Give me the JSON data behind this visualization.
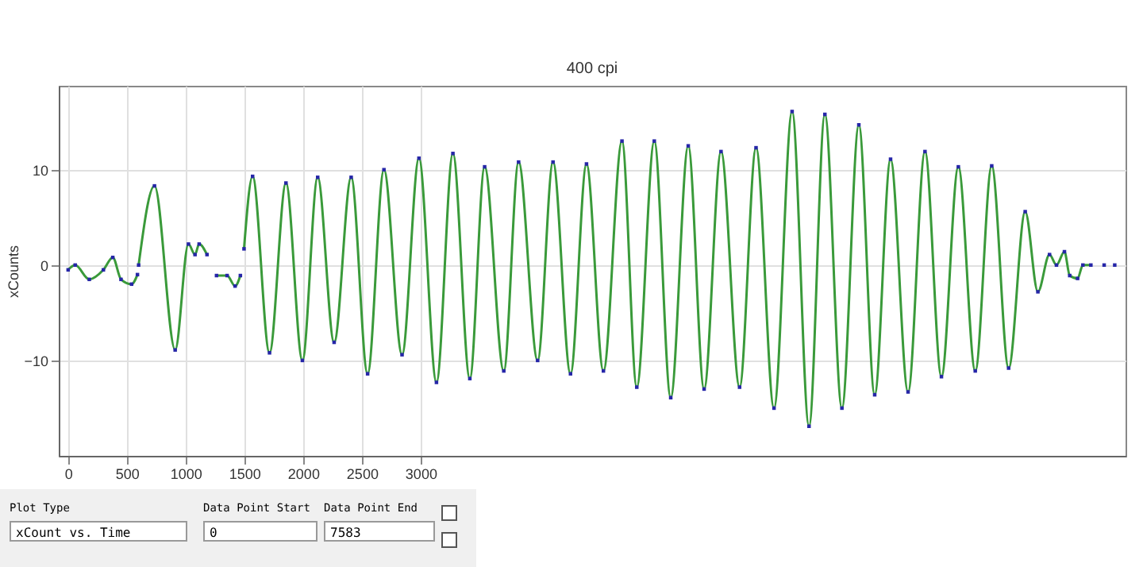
{
  "chart_data": {
    "type": "line",
    "subtitle": "400 cpi",
    "ylabel": "xCounts",
    "x": [
      0,
      60,
      180,
      300,
      380,
      450,
      540,
      590,
      592,
      600,
      735,
      911,
      1024,
      1080,
      1115,
      1182,
      1220,
      1263,
      1353,
      1421,
      1466,
      1480,
      1497,
      1570,
      1714,
      1854,
      1994,
      2124,
      2264,
      2409,
      2549,
      2688,
      2842,
      2986,
      3135,
      3275,
      3419,
      3545,
      3708,
      3834,
      3996,
      4127,
      4276,
      4412,
      4556,
      4714,
      4840,
      4989,
      5129,
      5278,
      5413,
      5557,
      5715,
      5855,
      6008,
      6162,
      6306,
      6441,
      6586,
      6730,
      6865,
      7000,
      7149,
      7293,
      7433,
      7577,
      7721,
      7861,
      8005,
      8146,
      8254,
      8353,
      8412,
      8480,
      8525,
      8592,
      8637,
      8705,
      8818,
      8908
    ],
    "series": [
      {
        "color": "#3a9a3a",
        "values": [
          -0.5,
          0,
          -1.5,
          -0.5,
          0.8,
          -1.5,
          -2,
          -1,
          null,
          0,
          8.3,
          -8.9,
          2.2,
          1.1,
          2.2,
          1.1,
          null,
          -1.1,
          -1.1,
          -2.2,
          -1.1,
          null,
          1.7,
          9.3,
          -9.2,
          8.6,
          -10,
          9.2,
          -8.1,
          9.2,
          -11.4,
          10,
          -9.4,
          11.2,
          -12.3,
          11.7,
          -11.9,
          10.3,
          -11.1,
          10.8,
          -10,
          10.8,
          -11.4,
          10.6,
          -11.1,
          13,
          -12.8,
          13,
          -13.9,
          12.5,
          -13,
          11.9,
          -12.8,
          12.3,
          -15,
          16.1,
          -16.9,
          15.8,
          -15,
          14.7,
          -13.6,
          11.1,
          -13.3,
          11.9,
          -11.7,
          10.3,
          -11.1,
          10.4,
          -10.8,
          5.6,
          -2.8,
          1.1,
          0,
          1.4,
          -1.1,
          -1.4,
          0,
          0,
          null,
          null
        ]
      },
      {
        "type": "scatter",
        "color": "#2626a8",
        "values": [
          -0.5,
          0,
          -1.5,
          -0.5,
          0.8,
          -1.5,
          -2,
          -1,
          null,
          0,
          8.3,
          -8.9,
          2.2,
          1.1,
          2.2,
          1.1,
          null,
          -1.1,
          -1.1,
          -2.2,
          -1.1,
          null,
          1.7,
          9.3,
          -9.2,
          8.6,
          -10,
          9.2,
          -8.1,
          9.2,
          -11.4,
          10,
          -9.4,
          11.2,
          -12.3,
          11.7,
          -11.9,
          10.3,
          -11.1,
          10.8,
          -10,
          10.8,
          -11.4,
          10.6,
          -11.1,
          13,
          -12.8,
          13,
          -13.9,
          12.5,
          -13,
          11.9,
          -12.8,
          12.3,
          -15,
          16.1,
          -16.9,
          15.8,
          -15,
          14.7,
          -13.6,
          11.1,
          -13.3,
          11.9,
          -11.7,
          10.3,
          -11.1,
          10.4,
          -10.8,
          5.6,
          -2.8,
          1.1,
          0,
          1.4,
          -1.1,
          -1.4,
          0,
          0,
          0,
          0
        ]
      }
    ],
    "xlim": [
      -80,
      9000
    ],
    "xticks": [
      0,
      500,
      1000,
      1500,
      2000,
      2500,
      3000
    ],
    "ylim": [
      -20,
      18.8
    ],
    "yticks": [
      -10,
      0,
      10
    ],
    "grid": true,
    "annotations": [
      "Plot Type",
      "xCount vs. Time",
      "Data Point Start",
      "0",
      "Data Point End",
      "7583"
    ]
  }
}
